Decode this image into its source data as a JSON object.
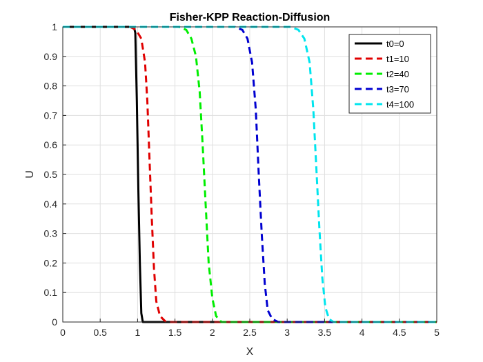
{
  "chart_data": {
    "type": "line",
    "title": "Fisher-KPP Reaction-Diffusion",
    "xlabel": "X",
    "ylabel": "U",
    "xlim": [
      0,
      5
    ],
    "ylim": [
      0,
      1
    ],
    "xticks": [
      "0",
      "0.5",
      "1",
      "1.5",
      "2",
      "2.5",
      "3",
      "3.5",
      "4",
      "4.5",
      "5"
    ],
    "yticks": [
      "0",
      "0.1",
      "0.2",
      "0.3",
      "0.4",
      "0.5",
      "0.6",
      "0.7",
      "0.8",
      "0.9",
      "1"
    ],
    "grid": true,
    "legend_position": "top-right",
    "series": [
      {
        "name": "t0=0",
        "color": "#000000",
        "style": "solid",
        "x": [
          0,
          0.95,
          0.97,
          0.99,
          1.01,
          1.03,
          1.05,
          1.07,
          5
        ],
        "y": [
          1,
          1,
          0.98,
          0.75,
          0.45,
          0.2,
          0.03,
          0,
          0
        ]
      },
      {
        "name": "t1=10",
        "color": "#e00000",
        "style": "dashed",
        "x": [
          0,
          0.9,
          0.98,
          1.05,
          1.1,
          1.13,
          1.16,
          1.19,
          1.22,
          1.25,
          1.3,
          1.38,
          5
        ],
        "y": [
          1,
          1,
          0.99,
          0.96,
          0.88,
          0.75,
          0.55,
          0.35,
          0.18,
          0.07,
          0.02,
          0,
          0
        ]
      },
      {
        "name": "t2=40",
        "color": "#00ee00",
        "style": "dashed",
        "x": [
          0,
          1.55,
          1.65,
          1.72,
          1.78,
          1.83,
          1.87,
          1.91,
          1.95,
          2.0,
          2.05,
          2.12,
          2.2,
          5
        ],
        "y": [
          1,
          1,
          0.99,
          0.96,
          0.9,
          0.78,
          0.6,
          0.4,
          0.2,
          0.08,
          0.02,
          0,
          0,
          0
        ]
      },
      {
        "name": "t3=70",
        "color": "#0000d0",
        "style": "dashed",
        "x": [
          0,
          2.3,
          2.4,
          2.47,
          2.53,
          2.58,
          2.62,
          2.66,
          2.7,
          2.74,
          2.8,
          2.88,
          5
        ],
        "y": [
          1,
          1,
          0.99,
          0.96,
          0.88,
          0.72,
          0.5,
          0.3,
          0.13,
          0.04,
          0.01,
          0,
          0
        ]
      },
      {
        "name": "t4=100",
        "color": "#00e5ee",
        "style": "dashed",
        "x": [
          0,
          3.05,
          3.15,
          3.23,
          3.3,
          3.35,
          3.39,
          3.43,
          3.47,
          3.51,
          3.56,
          3.62,
          5
        ],
        "y": [
          1,
          1,
          0.99,
          0.96,
          0.88,
          0.72,
          0.52,
          0.32,
          0.15,
          0.05,
          0.01,
          0,
          0
        ]
      }
    ]
  }
}
